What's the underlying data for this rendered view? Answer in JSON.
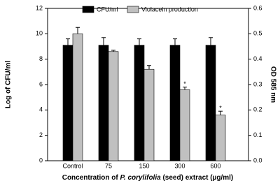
{
  "chart_data": {
    "type": "bar",
    "xlabel": [
      "Concentration of ",
      "P. corylifolia",
      " (seed) extract (µg/ml)"
    ],
    "ylabel": "Log of CFU/ml",
    "y2label": "OD 585 nm",
    "categories": [
      "Control",
      "75",
      "150",
      "300",
      "600"
    ],
    "series": [
      {
        "name": "CFU/ml",
        "color": "#000000",
        "values": [
          9.1,
          9.1,
          9.1,
          9.1,
          9.1
        ],
        "errors": [
          0.5,
          0.6,
          0.5,
          0.5,
          0.6
        ]
      },
      {
        "name": "Violacein production",
        "color": "#c0c0c0",
        "axis": "y2",
        "values": [
          0.5,
          0.43,
          0.36,
          0.28,
          0.18
        ],
        "errors": [
          0.025,
          0.005,
          0.015,
          0.01,
          0.015
        ],
        "markers": [
          null,
          null,
          null,
          "*",
          "*"
        ]
      }
    ],
    "ylim": [
      0,
      12
    ],
    "yticks": [
      0,
      2,
      4,
      6,
      8,
      10,
      12
    ],
    "y2lim": [
      0,
      0.6
    ],
    "y2ticks": [
      {
        "value": 0,
        "label": "0.0"
      },
      0.1,
      0.2,
      0.3,
      0.4,
      0.5,
      0.6
    ]
  }
}
